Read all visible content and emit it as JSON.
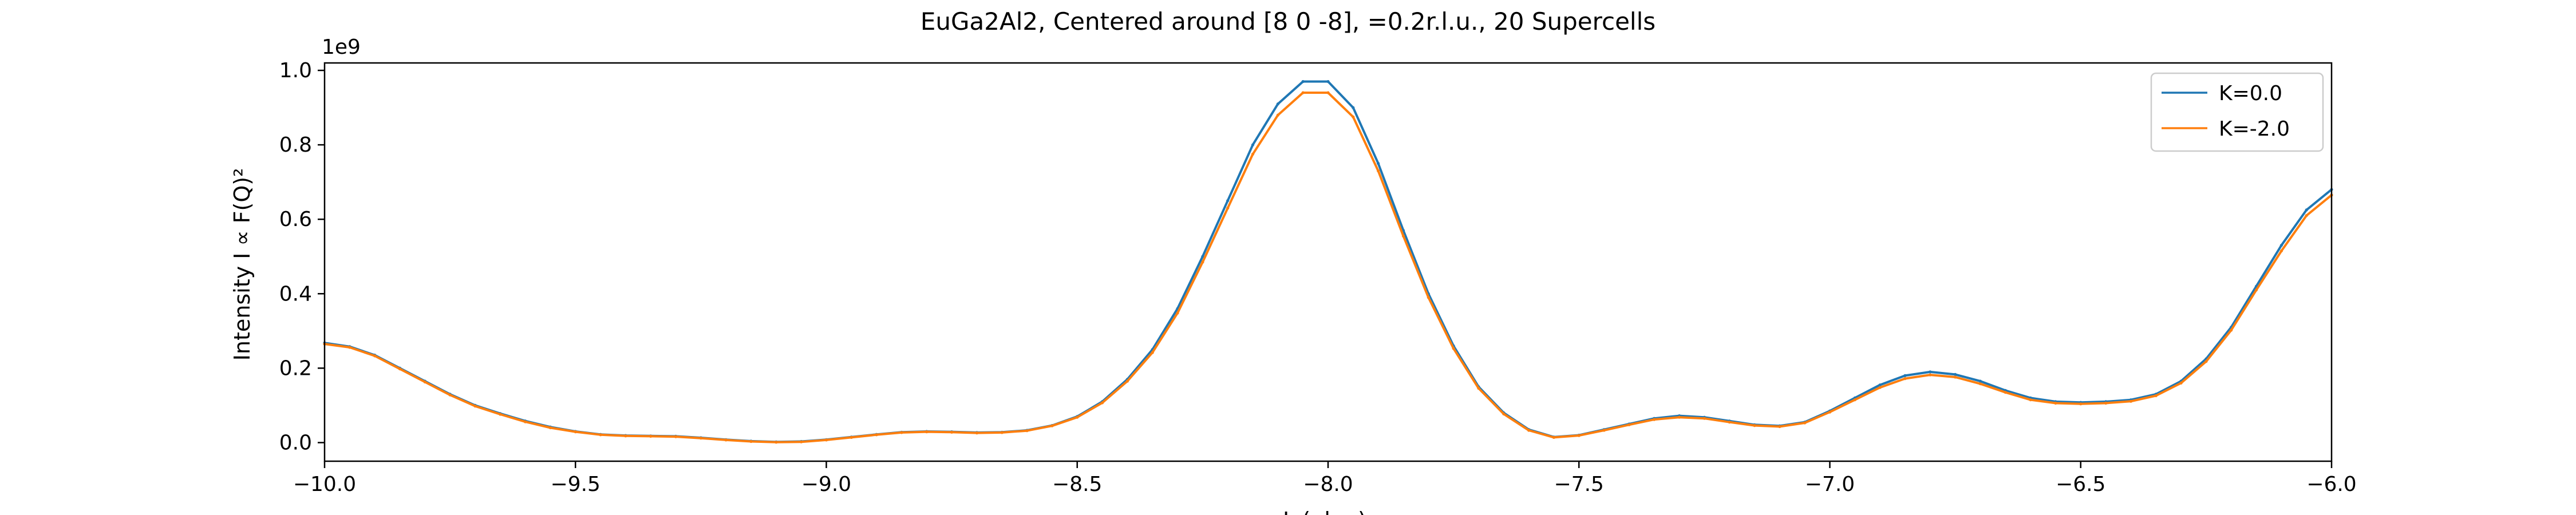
{
  "chart_data": {
    "type": "line",
    "title": "EuGa2Al2, Centered around [8 0 -8], =0.2r.l.u., 20 Supercells",
    "xlabel": "L (r.l.u.)",
    "ylabel": "Intensity I ∝ F(Q)²",
    "y_offset_label": "1e9",
    "xlim": [
      -10.0,
      -6.0
    ],
    "ylim": [
      -0.05,
      1.02
    ],
    "x_ticks": [
      -10.0,
      -9.5,
      -9.0,
      -8.5,
      -8.0,
      -7.5,
      -7.0,
      -6.5,
      -6.0
    ],
    "x_tick_labels": [
      "−10.0",
      "−9.5",
      "−9.0",
      "−8.5",
      "−8.0",
      "−7.5",
      "−7.0",
      "−6.5",
      "−6.0"
    ],
    "y_ticks": [
      0.0,
      0.2,
      0.4,
      0.6,
      0.8,
      1.0
    ],
    "y_tick_labels": [
      "0.0",
      "0.2",
      "0.4",
      "0.6",
      "0.8",
      "1.0"
    ],
    "grid": false,
    "legend_position": "top-right",
    "series": [
      {
        "name": "K=0.0",
        "color": "#1f77b4",
        "x": [
          -10.0,
          -9.95,
          -9.9,
          -9.85,
          -9.8,
          -9.75,
          -9.7,
          -9.65,
          -9.6,
          -9.55,
          -9.5,
          -9.45,
          -9.4,
          -9.35,
          -9.3,
          -9.25,
          -9.2,
          -9.15,
          -9.1,
          -9.05,
          -9.0,
          -8.95,
          -8.9,
          -8.85,
          -8.8,
          -8.75,
          -8.7,
          -8.65,
          -8.6,
          -8.55,
          -8.5,
          -8.45,
          -8.4,
          -8.35,
          -8.3,
          -8.25,
          -8.2,
          -8.15,
          -8.1,
          -8.05,
          -8.0,
          -7.95,
          -7.9,
          -7.85,
          -7.8,
          -7.75,
          -7.7,
          -7.65,
          -7.6,
          -7.55,
          -7.5,
          -7.45,
          -7.4,
          -7.35,
          -7.3,
          -7.25,
          -7.2,
          -7.15,
          -7.1,
          -7.05,
          -7.0,
          -6.95,
          -6.9,
          -6.85,
          -6.8,
          -6.75,
          -6.7,
          -6.65,
          -6.6,
          -6.55,
          -6.5,
          -6.45,
          -6.4,
          -6.35,
          -6.3,
          -6.25,
          -6.2,
          -6.15,
          -6.1,
          -6.05,
          -6.0
        ],
        "y": [
          0.268,
          0.258,
          0.235,
          0.2,
          0.165,
          0.13,
          0.1,
          0.078,
          0.058,
          0.042,
          0.03,
          0.022,
          0.019,
          0.018,
          0.017,
          0.013,
          0.008,
          0.004,
          0.002,
          0.003,
          0.008,
          0.015,
          0.022,
          0.028,
          0.03,
          0.029,
          0.027,
          0.028,
          0.033,
          0.046,
          0.07,
          0.11,
          0.17,
          0.25,
          0.36,
          0.5,
          0.65,
          0.8,
          0.91,
          0.97,
          0.97,
          0.9,
          0.75,
          0.57,
          0.4,
          0.26,
          0.15,
          0.08,
          0.035,
          0.015,
          0.02,
          0.035,
          0.05,
          0.065,
          0.072,
          0.068,
          0.058,
          0.048,
          0.045,
          0.055,
          0.085,
          0.12,
          0.155,
          0.18,
          0.19,
          0.183,
          0.165,
          0.14,
          0.12,
          0.11,
          0.108,
          0.11,
          0.115,
          0.13,
          0.165,
          0.225,
          0.31,
          0.42,
          0.53,
          0.625,
          0.68
        ]
      },
      {
        "name": "K=-2.0",
        "color": "#ff7f0e",
        "x": [
          -10.0,
          -9.95,
          -9.9,
          -9.85,
          -9.8,
          -9.75,
          -9.7,
          -9.65,
          -9.6,
          -9.55,
          -9.5,
          -9.45,
          -9.4,
          -9.35,
          -9.3,
          -9.25,
          -9.2,
          -9.15,
          -9.1,
          -9.05,
          -9.0,
          -8.95,
          -8.9,
          -8.85,
          -8.8,
          -8.75,
          -8.7,
          -8.65,
          -8.6,
          -8.55,
          -8.5,
          -8.45,
          -8.4,
          -8.35,
          -8.3,
          -8.25,
          -8.2,
          -8.15,
          -8.1,
          -8.05,
          -8.0,
          -7.95,
          -7.9,
          -7.85,
          -7.8,
          -7.75,
          -7.7,
          -7.65,
          -7.6,
          -7.55,
          -7.5,
          -7.45,
          -7.4,
          -7.35,
          -7.3,
          -7.25,
          -7.2,
          -7.15,
          -7.1,
          -7.05,
          -7.0,
          -6.95,
          -6.9,
          -6.85,
          -6.8,
          -6.75,
          -6.7,
          -6.65,
          -6.6,
          -6.55,
          -6.5,
          -6.45,
          -6.4,
          -6.35,
          -6.3,
          -6.25,
          -6.2,
          -6.15,
          -6.1,
          -6.05,
          -6.0
        ],
        "y": [
          0.265,
          0.256,
          0.233,
          0.198,
          0.163,
          0.128,
          0.098,
          0.076,
          0.056,
          0.04,
          0.029,
          0.021,
          0.018,
          0.017,
          0.016,
          0.012,
          0.007,
          0.003,
          0.001,
          0.002,
          0.007,
          0.014,
          0.021,
          0.027,
          0.029,
          0.028,
          0.026,
          0.027,
          0.032,
          0.045,
          0.068,
          0.107,
          0.165,
          0.242,
          0.348,
          0.485,
          0.63,
          0.775,
          0.88,
          0.94,
          0.94,
          0.875,
          0.73,
          0.555,
          0.39,
          0.253,
          0.146,
          0.077,
          0.033,
          0.014,
          0.019,
          0.033,
          0.048,
          0.062,
          0.068,
          0.065,
          0.055,
          0.046,
          0.043,
          0.053,
          0.082,
          0.115,
          0.148,
          0.172,
          0.182,
          0.176,
          0.158,
          0.135,
          0.115,
          0.106,
          0.104,
          0.106,
          0.111,
          0.126,
          0.16,
          0.218,
          0.302,
          0.41,
          0.515,
          0.61,
          0.665
        ]
      }
    ]
  }
}
